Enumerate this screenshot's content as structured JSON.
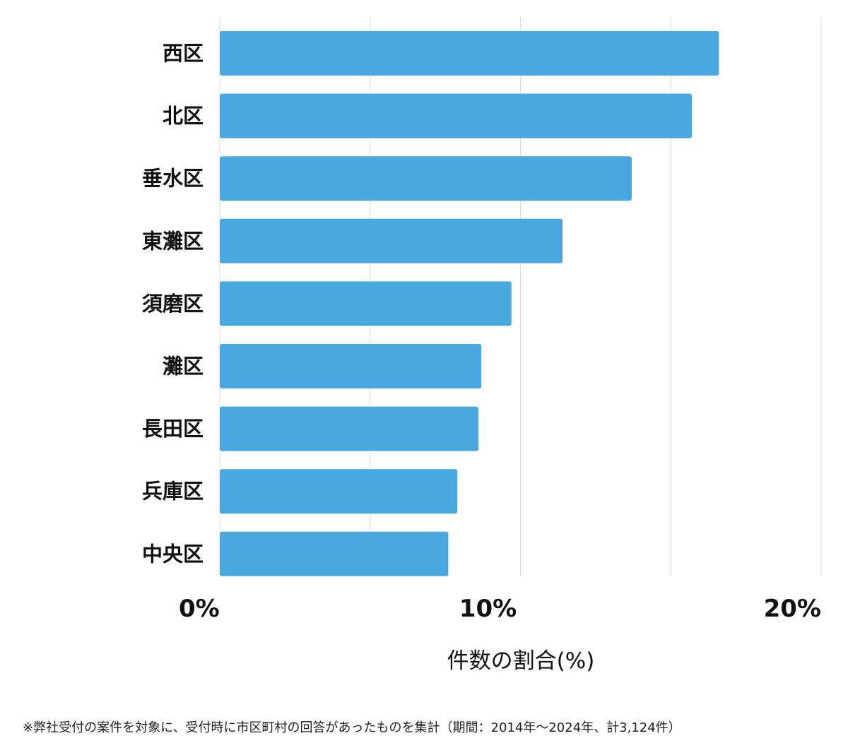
{
  "chart_data": {
    "type": "bar",
    "orientation": "horizontal",
    "categories": [
      "西区",
      "北区",
      "垂水区",
      "東灘区",
      "須磨区",
      "灘区",
      "長田区",
      "兵庫区",
      "中央区"
    ],
    "values": [
      16.6,
      15.7,
      13.7,
      11.4,
      9.7,
      8.7,
      8.6,
      7.9,
      7.6
    ],
    "xlim": [
      0,
      20
    ],
    "xticks": [
      "0%",
      "10%",
      "20%"
    ],
    "xlabel": "件数の割合(%)",
    "ylabel": "",
    "title": "",
    "grid": "vertical",
    "bar_color": "#4aa8e0"
  },
  "footnote": "※弊社受付の案件を対象に、受付時に市区町村の回答があったものを集計（期間：2014年〜2024年、計3,124件）"
}
